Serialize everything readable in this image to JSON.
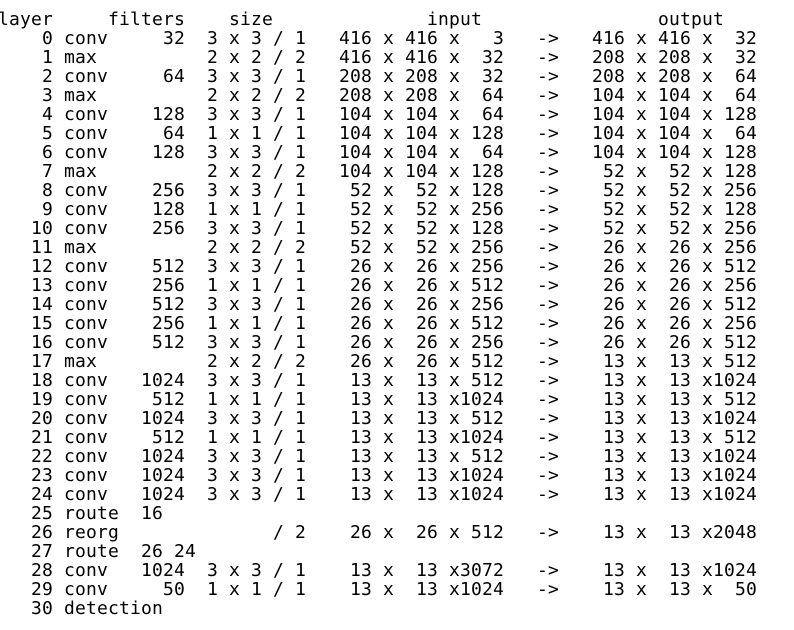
{
  "header": "layer     filters    size              input                output",
  "rows": [
    "    0 conv     32  3 x 3 / 1   416 x 416 x   3   ->   416 x 416 x  32",
    "    1 max          2 x 2 / 2   416 x 416 x  32   ->   208 x 208 x  32",
    "    2 conv     64  3 x 3 / 1   208 x 208 x  32   ->   208 x 208 x  64",
    "    3 max          2 x 2 / 2   208 x 208 x  64   ->   104 x 104 x  64",
    "    4 conv    128  3 x 3 / 1   104 x 104 x  64   ->   104 x 104 x 128",
    "    5 conv     64  1 x 1 / 1   104 x 104 x 128   ->   104 x 104 x  64",
    "    6 conv    128  3 x 3 / 1   104 x 104 x  64   ->   104 x 104 x 128",
    "    7 max          2 x 2 / 2   104 x 104 x 128   ->    52 x  52 x 128",
    "    8 conv    256  3 x 3 / 1    52 x  52 x 128   ->    52 x  52 x 256",
    "    9 conv    128  1 x 1 / 1    52 x  52 x 256   ->    52 x  52 x 128",
    "   10 conv    256  3 x 3 / 1    52 x  52 x 128   ->    52 x  52 x 256",
    "   11 max          2 x 2 / 2    52 x  52 x 256   ->    26 x  26 x 256",
    "   12 conv    512  3 x 3 / 1    26 x  26 x 256   ->    26 x  26 x 512",
    "   13 conv    256  1 x 1 / 1    26 x  26 x 512   ->    26 x  26 x 256",
    "   14 conv    512  3 x 3 / 1    26 x  26 x 256   ->    26 x  26 x 512",
    "   15 conv    256  1 x 1 / 1    26 x  26 x 512   ->    26 x  26 x 256",
    "   16 conv    512  3 x 3 / 1    26 x  26 x 256   ->    26 x  26 x 512",
    "   17 max          2 x 2 / 2    26 x  26 x 512   ->    13 x  13 x 512",
    "   18 conv   1024  3 x 3 / 1    13 x  13 x 512   ->    13 x  13 x1024",
    "   19 conv    512  1 x 1 / 1    13 x  13 x1024   ->    13 x  13 x 512",
    "   20 conv   1024  3 x 3 / 1    13 x  13 x 512   ->    13 x  13 x1024",
    "   21 conv    512  1 x 1 / 1    13 x  13 x1024   ->    13 x  13 x 512",
    "   22 conv   1024  3 x 3 / 1    13 x  13 x 512   ->    13 x  13 x1024",
    "   23 conv   1024  3 x 3 / 1    13 x  13 x1024   ->    13 x  13 x1024",
    "   24 conv   1024  3 x 3 / 1    13 x  13 x1024   ->    13 x  13 x1024",
    "   25 route  16",
    "   26 reorg              / 2    26 x  26 x 512   ->    13 x  13 x2048",
    "   27 route  26 24",
    "   28 conv   1024  3 x 3 / 1    13 x  13 x3072   ->    13 x  13 x1024",
    "   29 conv     50  1 x 1 / 1    13 x  13 x1024   ->    13 x  13 x  50",
    "   30 detection"
  ]
}
